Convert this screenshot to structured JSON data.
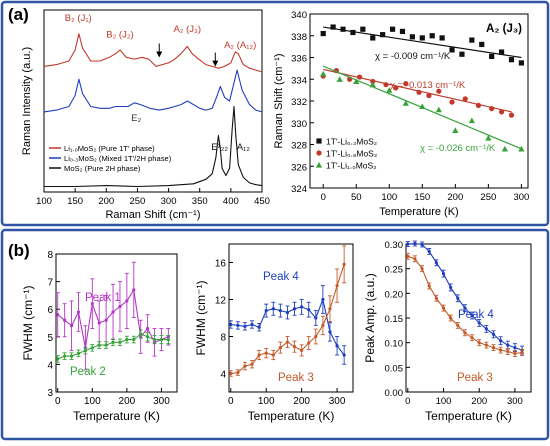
{
  "panels": {
    "a_label": "(a)",
    "b_label": "(b)",
    "colors": {
      "frame": "#2f55a4",
      "red": "#c0392b",
      "green": "#38a23a",
      "blue": "#1f3fbf",
      "magenta": "#b536c8",
      "brown": "#b23a1e",
      "orange": "#c45a2a"
    }
  },
  "chart_data": [
    {
      "id": "raman-spectra",
      "type": "line",
      "xlabel": "Raman Shift (cm⁻¹)",
      "ylabel": "Raman Intensity (a.u.)",
      "xlim": [
        100,
        450
      ],
      "xticks": [
        100,
        150,
        200,
        250,
        300,
        350,
        400,
        450
      ],
      "ylim": [
        0,
        10
      ],
      "annotations": [
        {
          "text": "B₂ (J₁)",
          "x": 155,
          "y": 9.4,
          "color": "#c0392b"
        },
        {
          "text": "B₂ (J₂)",
          "x": 222,
          "y": 8.5,
          "color": "#c0392b"
        },
        {
          "text": "A₂ (J₃)",
          "x": 330,
          "y": 8.8,
          "color": "#c0392b"
        },
        {
          "text": "A₂ (A₁₂)",
          "x": 415,
          "y": 7.9,
          "color": "#c0392b"
        },
        {
          "text": "E₂",
          "x": 248,
          "y": 3.9,
          "color": "#333333"
        },
        {
          "text": "E¹₂₂",
          "x": 382,
          "y": 2.3,
          "color": "#111111"
        },
        {
          "text": "A₁₂",
          "x": 420,
          "y": 2.3,
          "color": "#111111"
        }
      ],
      "arrows": [
        {
          "x": 285,
          "y": 7.5
        },
        {
          "x": 375,
          "y": 7.0
        }
      ],
      "series": [
        {
          "name": "Li₁.₀MoS₂ (Pure 1T′ phase)",
          "color": "#c0392b",
          "x": [
            100,
            120,
            140,
            150,
            156,
            162,
            175,
            190,
            205,
            215,
            222,
            232,
            245,
            258,
            268,
            280,
            290,
            300,
            310,
            320,
            330,
            338,
            348,
            360,
            370,
            380,
            390,
            400,
            407,
            412,
            420,
            430,
            440,
            450
          ],
          "y": [
            6.9,
            7.0,
            7.2,
            7.8,
            8.7,
            7.9,
            7.2,
            7.2,
            7.4,
            7.6,
            7.8,
            7.4,
            7.3,
            7.4,
            7.3,
            6.9,
            7.0,
            7.1,
            7.3,
            7.6,
            8.0,
            7.6,
            7.3,
            7.0,
            6.9,
            6.8,
            6.9,
            7.1,
            7.7,
            7.6,
            7.0,
            6.8,
            6.7,
            6.6
          ]
        },
        {
          "name": "Li₀.₃MoS₂ (Mixed 1T′/2H phase)",
          "color": "#1f3fbf",
          "x": [
            100,
            120,
            140,
            150,
            156,
            162,
            175,
            190,
            205,
            215,
            225,
            235,
            245,
            255,
            270,
            285,
            300,
            310,
            320,
            330,
            340,
            350,
            360,
            370,
            378,
            383,
            390,
            398,
            405,
            410,
            418,
            430,
            440,
            450
          ],
          "y": [
            4.4,
            4.5,
            4.7,
            5.3,
            6.2,
            5.4,
            4.7,
            4.6,
            4.6,
            4.7,
            4.7,
            4.7,
            4.9,
            4.8,
            4.6,
            4.5,
            4.6,
            4.7,
            4.8,
            5.0,
            4.8,
            4.6,
            4.5,
            4.6,
            5.3,
            5.8,
            5.2,
            5.0,
            6.0,
            6.7,
            5.6,
            4.8,
            4.5,
            4.4
          ]
        },
        {
          "name": "MoS₂ (Pure 2H phase)",
          "color": "#111111",
          "x": [
            100,
            150,
            200,
            250,
            300,
            340,
            360,
            370,
            376,
            380,
            383,
            386,
            392,
            398,
            402,
            405,
            408,
            412,
            420,
            430,
            440,
            450
          ],
          "y": [
            0.3,
            0.3,
            0.35,
            0.3,
            0.35,
            0.45,
            0.7,
            1.0,
            1.9,
            3.1,
            2.4,
            1.3,
            0.9,
            1.3,
            3.4,
            4.7,
            3.1,
            1.5,
            0.8,
            0.5,
            0.4,
            0.35
          ]
        }
      ]
    },
    {
      "id": "ag-j3-temperature",
      "type": "scatter",
      "title": "A₂ (J₃)",
      "xlabel": "Temperature (K)",
      "ylabel": "Raman Shift (cm⁻¹)",
      "xlim": [
        -20,
        310
      ],
      "xticks": [
        0,
        50,
        100,
        150,
        200,
        250,
        300
      ],
      "ylim": [
        324,
        340
      ],
      "yticks": [
        324,
        326,
        328,
        330,
        332,
        334,
        336,
        338,
        340
      ],
      "legend_position": "bottom-left",
      "series": [
        {
          "name": "1T′-Li₀.₃MoS₂",
          "color": "#111111",
          "marker": "square",
          "fit_label": "χ = -0.009 cm⁻¹/K",
          "fit": [
            0,
            338.8,
            300,
            336.0
          ],
          "x": [
            0,
            15,
            30,
            45,
            60,
            75,
            90,
            105,
            120,
            135,
            150,
            165,
            180,
            195,
            210,
            225,
            240,
            255,
            270,
            285,
            300
          ],
          "y": [
            338.2,
            338.8,
            338.6,
            338.3,
            338.6,
            337.8,
            338.1,
            338.6,
            338.4,
            337.9,
            337.8,
            338.0,
            337.8,
            336.7,
            336.3,
            337.6,
            337.2,
            336.1,
            336.5,
            335.8,
            335.5
          ]
        },
        {
          "name": "1T′-Li₀.₈MoS₂",
          "color": "#c0392b",
          "marker": "circle",
          "fit_label": "χ = -0.013 cm⁻¹/K",
          "fit": [
            0,
            334.9,
            285,
            331.0
          ],
          "x": [
            0,
            20,
            40,
            55,
            75,
            95,
            110,
            125,
            145,
            160,
            175,
            195,
            215,
            235,
            255,
            270,
            285
          ],
          "y": [
            334.3,
            334.8,
            334.0,
            334.2,
            333.8,
            333.5,
            333.2,
            333.6,
            332.8,
            332.5,
            332.9,
            331.9,
            332.2,
            331.6,
            331.3,
            331.0,
            330.7
          ]
        },
        {
          "name": "1T′-Li₁.₀MoS₂",
          "color": "#38a23a",
          "marker": "triangle",
          "fit_label": "χ = -0.026 cm⁻¹/K",
          "fit": [
            0,
            335.2,
            300,
            327.6
          ],
          "x": [
            0,
            25,
            50,
            75,
            100,
            125,
            150,
            175,
            200,
            225,
            250,
            275,
            300
          ],
          "y": [
            334.5,
            334.0,
            333.8,
            333.5,
            333.0,
            331.8,
            331.5,
            331.2,
            329.3,
            330.2,
            328.6,
            327.6,
            327.6
          ]
        }
      ]
    },
    {
      "id": "fwhm-peaks-1-2",
      "type": "line",
      "xlabel": "Temperature (K)",
      "ylabel": "FWHM (cm⁻¹)",
      "xlim": [
        -5,
        345
      ],
      "xticks": [
        0,
        100,
        200,
        300
      ],
      "ylim": [
        3,
        8
      ],
      "yticks": [
        3,
        4,
        5,
        6,
        7,
        8
      ],
      "series": [
        {
          "name": "Peak 1",
          "color": "#b536c8",
          "x": [
            0,
            20,
            40,
            60,
            80,
            100,
            120,
            140,
            160,
            180,
            200,
            220,
            240,
            260,
            280,
            300,
            320
          ],
          "y": [
            5.8,
            5.6,
            5.4,
            5.9,
            4.6,
            6.2,
            5.5,
            5.6,
            5.9,
            6.1,
            6.3,
            6.7,
            5.0,
            5.3,
            4.8,
            4.9,
            5.0
          ],
          "err": [
            0.8,
            0.6,
            0.9,
            0.7,
            0.8,
            0.9,
            0.8,
            0.9,
            1.0,
            0.9,
            1.0,
            1.0,
            0.6,
            0.5,
            0.5,
            0.4,
            0.3
          ]
        },
        {
          "name": "Peak 2",
          "color": "#38a23a",
          "x": [
            0,
            20,
            40,
            60,
            80,
            100,
            120,
            140,
            160,
            180,
            200,
            220,
            240,
            260,
            280,
            300,
            320
          ],
          "y": [
            4.2,
            4.3,
            4.3,
            4.4,
            4.5,
            4.6,
            4.7,
            4.7,
            4.8,
            4.8,
            4.9,
            4.9,
            5.1,
            5.0,
            4.9,
            4.9,
            4.9
          ],
          "err": [
            0.12,
            0.12,
            0.12,
            0.12,
            0.12,
            0.12,
            0.12,
            0.12,
            0.12,
            0.12,
            0.12,
            0.12,
            0.15,
            0.15,
            0.15,
            0.15,
            0.15
          ]
        }
      ]
    },
    {
      "id": "fwhm-peaks-3-4",
      "type": "line",
      "xlabel": "Temperature (K)",
      "ylabel": "FWHM (cm⁻¹)",
      "xlim": [
        -5,
        345
      ],
      "xticks": [
        0,
        100,
        200,
        300
      ],
      "ylim": [
        2,
        18
      ],
      "yticks": [
        4,
        8,
        12,
        16
      ],
      "series": [
        {
          "name": "Peak 4",
          "color": "#1f3fbf",
          "x": [
            0,
            20,
            40,
            60,
            80,
            100,
            120,
            140,
            160,
            180,
            200,
            220,
            240,
            260,
            280,
            300,
            320
          ],
          "y": [
            9.3,
            9.2,
            9.1,
            9.3,
            9.0,
            10.8,
            11.0,
            10.8,
            10.6,
            11.0,
            11.2,
            10.9,
            10.0,
            12.0,
            8.5,
            7.0,
            6.0
          ],
          "err": [
            0.4,
            0.4,
            0.4,
            0.4,
            0.4,
            0.7,
            0.7,
            0.7,
            0.7,
            0.7,
            0.8,
            0.8,
            0.8,
            1.5,
            1.0,
            1.0,
            1.0
          ]
        },
        {
          "name": "Peak 3",
          "color": "#c45a2a",
          "x": [
            0,
            20,
            40,
            60,
            80,
            100,
            120,
            140,
            160,
            180,
            200,
            220,
            240,
            260,
            280,
            300,
            320
          ],
          "y": [
            4.0,
            4.1,
            4.8,
            5.0,
            6.0,
            6.2,
            6.0,
            6.8,
            7.4,
            6.9,
            6.5,
            7.3,
            8.0,
            9.2,
            11.0,
            13.5,
            15.8
          ],
          "err": [
            0.3,
            0.3,
            0.4,
            0.4,
            0.5,
            0.5,
            0.5,
            0.6,
            0.6,
            0.6,
            0.6,
            0.7,
            0.8,
            1.0,
            1.4,
            1.8,
            2.0
          ]
        }
      ]
    },
    {
      "id": "peak-amplitude",
      "type": "line",
      "xlabel": "Temperature (K)",
      "ylabel": "Peak Amp. (a.u.)",
      "xlim": [
        -5,
        345
      ],
      "xticks": [
        0,
        100,
        200,
        300
      ],
      "ylim": [
        0,
        0.3
      ],
      "yticks": [
        0.0,
        0.05,
        0.1,
        0.15,
        0.2,
        0.25,
        0.3
      ],
      "ytick_labels": [
        "0.00",
        "0.05",
        "0.10",
        "0.15",
        "0.20",
        "0.25",
        "0.30"
      ],
      "series": [
        {
          "name": "Peak 4",
          "color": "#1f3fbf",
          "x": [
            0,
            20,
            40,
            60,
            80,
            100,
            120,
            140,
            160,
            180,
            200,
            220,
            240,
            260,
            280,
            300,
            320
          ],
          "y": [
            0.3,
            0.301,
            0.299,
            0.285,
            0.262,
            0.24,
            0.212,
            0.19,
            0.17,
            0.155,
            0.14,
            0.128,
            0.117,
            0.104,
            0.095,
            0.09,
            0.085
          ],
          "err": [
            0.005,
            0.005,
            0.005,
            0.006,
            0.006,
            0.007,
            0.007,
            0.007,
            0.007,
            0.007,
            0.007,
            0.007,
            0.007,
            0.008,
            0.008,
            0.008,
            0.008
          ]
        },
        {
          "name": "Peak 3",
          "color": "#c45a2a",
          "x": [
            0,
            20,
            40,
            60,
            80,
            100,
            120,
            140,
            160,
            180,
            200,
            220,
            240,
            260,
            280,
            300,
            320
          ],
          "y": [
            0.275,
            0.27,
            0.25,
            0.215,
            0.19,
            0.17,
            0.15,
            0.135,
            0.12,
            0.11,
            0.1,
            0.095,
            0.09,
            0.085,
            0.082,
            0.078,
            0.08
          ],
          "err": [
            0.006,
            0.006,
            0.006,
            0.006,
            0.006,
            0.006,
            0.006,
            0.006,
            0.006,
            0.006,
            0.006,
            0.006,
            0.006,
            0.006,
            0.006,
            0.006,
            0.006
          ]
        }
      ]
    }
  ]
}
